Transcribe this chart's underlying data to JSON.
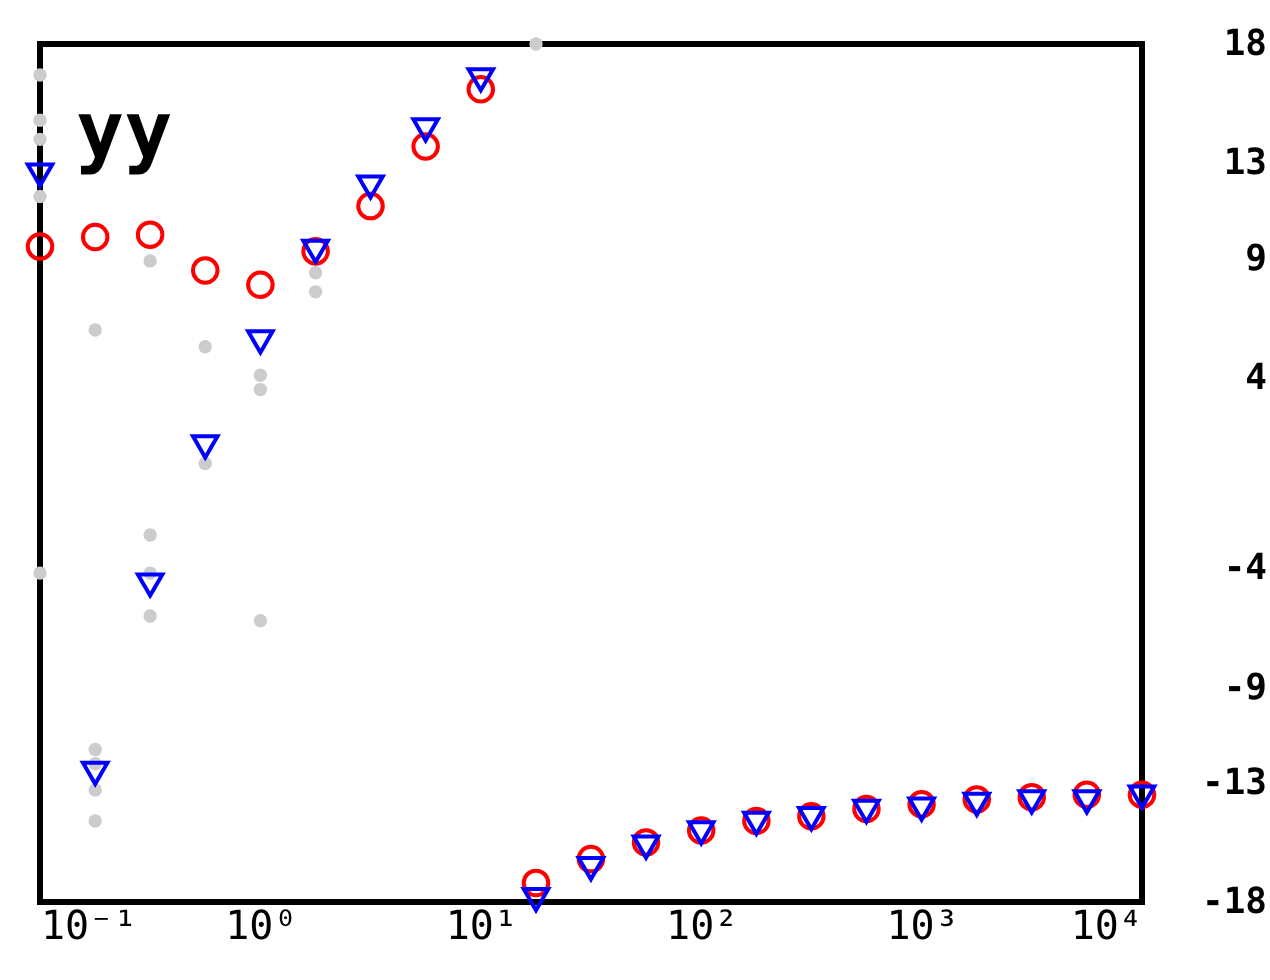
{
  "chart_data": {
    "type": "scatter",
    "log": "x",
    "annotations": [
      "yy"
    ],
    "xlim": [
      0.1,
      10000
    ],
    "xticks": [
      {
        "value": 0.1,
        "label": "10⁻¹"
      },
      {
        "value": 1,
        "label": "10⁰"
      },
      {
        "value": 10,
        "label": "10¹"
      },
      {
        "value": 100,
        "label": "10²"
      },
      {
        "value": 1000,
        "label": "10³"
      },
      {
        "value": 10000,
        "label": "10⁴"
      }
    ],
    "ylim": [
      -18,
      18
    ],
    "yticks": [
      18,
      13,
      9,
      4,
      -4,
      -9,
      -13,
      -18
    ],
    "series": [
      {
        "color": "#cccccc",
        "marker": "circle",
        "x": [
          0.1,
          0.1,
          0.1,
          0.1,
          0.1,
          0.178,
          0.178,
          0.178,
          0.178,
          0.178,
          0.316,
          0.316,
          0.316,
          0.316,
          0.562,
          0.562,
          1,
          1,
          1,
          1.78,
          1.78,
          17.8
        ],
        "values": [
          16.7,
          14.8,
          14,
          11.6,
          -4.2,
          6,
          -11.6,
          -12.2,
          -13.3,
          -14.6,
          8.9,
          -2.6,
          -4.2,
          -6,
          5.3,
          0.4,
          4.1,
          3.5,
          -6.2,
          8.4,
          7.6,
          18
        ]
      },
      {
        "color": "#ff0000",
        "marker": "circle",
        "x": [
          0.1,
          0.178,
          0.316,
          0.562,
          1,
          1.78,
          3.16,
          5.62,
          10,
          17.8,
          31.6,
          56.2,
          100,
          178,
          316,
          562,
          1000,
          1780,
          3160,
          5620,
          10000
        ],
        "values": [
          9.5,
          9.9,
          10,
          8.5,
          7.9,
          9.3,
          11.2,
          13.7,
          16.1,
          -17.2,
          -16.2,
          -15.5,
          -15,
          -14.6,
          -14.4,
          -14.1,
          -13.9,
          -13.7,
          -13.6,
          -13.5,
          -13.5
        ]
      },
      {
        "color": "#0000ff",
        "marker": "triangle",
        "x": [
          0.1,
          0.178,
          0.316,
          0.562,
          1,
          1.78,
          3.16,
          5.62,
          10,
          17.8,
          31.6,
          56.2,
          100,
          178,
          316,
          562,
          1000,
          1780,
          3160,
          5620,
          10000
        ],
        "values": [
          12.5,
          -12.6,
          -4.7,
          1.1,
          5.5,
          9.3,
          12,
          14.4,
          16.5,
          -17.9,
          -16.6,
          -15.7,
          -15.1,
          -14.7,
          -14.5,
          -14.2,
          -14.1,
          -13.9,
          -13.8,
          -13.8,
          -13.6
        ]
      }
    ]
  }
}
